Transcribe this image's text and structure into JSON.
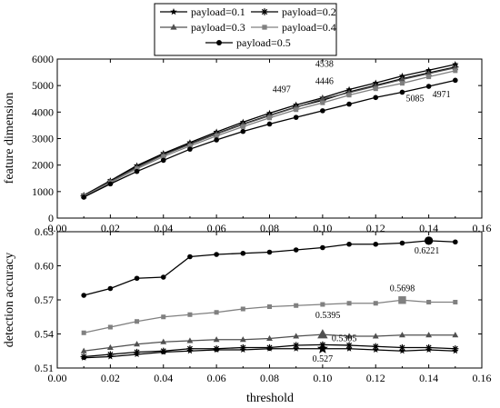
{
  "chart_data": [
    {
      "type": "line",
      "ylabel": "feature dimension",
      "xlim": [
        0.0,
        0.16
      ],
      "ylim": [
        0,
        6000
      ],
      "x_ticks": [
        "0.00",
        "0.02",
        "0.04",
        "0.06",
        "0.08",
        "0.10",
        "0.12",
        "0.14",
        "0.16"
      ],
      "y_ticks": [
        "0",
        "1000",
        "2000",
        "3000",
        "4000",
        "5000",
        "6000"
      ],
      "x": [
        0.01,
        0.02,
        0.03,
        0.04,
        0.05,
        0.06,
        0.07,
        0.08,
        0.09,
        0.1,
        0.11,
        0.12,
        0.13,
        0.14,
        0.15
      ],
      "series": [
        {
          "name": "payload=0.1",
          "marker": "star",
          "color": "#000000",
          "values": [
            860,
            1410,
            1980,
            2440,
            2850,
            3250,
            3620,
            3960,
            4270,
            4538,
            4850,
            5100,
            5360,
            5580,
            5800
          ]
        },
        {
          "name": "payload=0.2",
          "marker": "asterisk",
          "color": "#000000",
          "values": [
            840,
            1380,
            1930,
            2400,
            2800,
            3190,
            3550,
            3880,
            4190,
            4446,
            4760,
            5010,
            5260,
            5480,
            5700
          ]
        },
        {
          "name": "payload=0.3",
          "marker": "triangle",
          "color": "#505050",
          "values": [
            830,
            1370,
            1910,
            2380,
            2780,
            3170,
            3530,
            3860,
            4180,
            4497,
            4730,
            4980,
            5230,
            5450,
            5670
          ]
        },
        {
          "name": "payload=0.4",
          "marker": "square",
          "color": "#808080",
          "values": [
            820,
            1340,
            1860,
            2320,
            2720,
            3100,
            3450,
            3780,
            4090,
            4350,
            4640,
            4880,
            5085,
            5330,
            5560
          ]
        },
        {
          "name": "payload=0.5",
          "marker": "circle",
          "color": "#000000",
          "values": [
            790,
            1290,
            1760,
            2180,
            2600,
            2950,
            3270,
            3550,
            3800,
            4050,
            4300,
            4550,
            4750,
            4971,
            5200
          ]
        }
      ],
      "annotations": [
        {
          "text": "4538",
          "x": 0.1,
          "y": 4538
        },
        {
          "text": "4446",
          "x": 0.1,
          "y": 4446
        },
        {
          "text": "4497",
          "x": 0.09,
          "y": 4270
        },
        {
          "text": "5085",
          "x": 0.13,
          "y": 4750
        },
        {
          "text": "4971",
          "x": 0.14,
          "y": 4971
        }
      ],
      "legend": {
        "placement": "top-center",
        "entries": [
          "payload=0.1",
          "payload=0.2",
          "payload=0.3",
          "payload=0.4",
          "payload=0.5"
        ]
      }
    },
    {
      "type": "line",
      "xlabel": "threshold",
      "ylabel": "detection accuracy",
      "xlim": [
        0.0,
        0.16
      ],
      "ylim": [
        0.51,
        0.63
      ],
      "x_ticks": [
        "0.00",
        "0.02",
        "0.04",
        "0.06",
        "0.08",
        "0.10",
        "0.12",
        "0.14",
        "0.16"
      ],
      "y_ticks": [
        "0.51",
        "0.54",
        "0.57",
        "0.60",
        "0.63"
      ],
      "x": [
        0.01,
        0.02,
        0.03,
        0.04,
        0.05,
        0.06,
        0.07,
        0.08,
        0.09,
        0.1,
        0.11,
        0.12,
        0.13,
        0.14,
        0.15
      ],
      "series": [
        {
          "name": "payload=0.1",
          "marker": "star",
          "color": "#000000",
          "values": [
            0.519,
            0.52,
            0.522,
            0.524,
            0.525,
            0.526,
            0.526,
            0.527,
            0.527,
            0.527,
            0.527,
            0.526,
            0.525,
            0.526,
            0.525
          ]
        },
        {
          "name": "payload=0.2",
          "marker": "asterisk",
          "color": "#000000",
          "values": [
            0.52,
            0.522,
            0.524,
            0.525,
            0.527,
            0.527,
            0.528,
            0.528,
            0.53,
            0.5305,
            0.53,
            0.529,
            0.528,
            0.528,
            0.527
          ]
        },
        {
          "name": "payload=0.3",
          "marker": "triangle",
          "color": "#505050",
          "values": [
            0.525,
            0.528,
            0.531,
            0.533,
            0.534,
            0.535,
            0.535,
            0.536,
            0.538,
            0.5395,
            0.538,
            0.538,
            0.539,
            0.539,
            0.539
          ]
        },
        {
          "name": "payload=0.4",
          "marker": "square",
          "color": "#808080",
          "values": [
            0.541,
            0.546,
            0.551,
            0.555,
            0.557,
            0.559,
            0.562,
            0.564,
            0.565,
            0.566,
            0.567,
            0.567,
            0.5698,
            0.568,
            0.568
          ]
        },
        {
          "name": "payload=0.5",
          "marker": "circle",
          "color": "#000000",
          "values": [
            0.574,
            0.58,
            0.589,
            0.59,
            0.608,
            0.61,
            0.611,
            0.612,
            0.614,
            0.616,
            0.619,
            0.619,
            0.62,
            0.6221,
            0.621
          ]
        }
      ],
      "annotations": [
        {
          "text": "0.6221",
          "x": 0.14,
          "y": 0.6221
        },
        {
          "text": "0.5698",
          "x": 0.13,
          "y": 0.5698
        },
        {
          "text": "0.5395",
          "x": 0.1,
          "y": 0.5395
        },
        {
          "text": "0.5305",
          "x": 0.1,
          "y": 0.5305
        },
        {
          "text": "0.527",
          "x": 0.1,
          "y": 0.527
        }
      ]
    }
  ]
}
